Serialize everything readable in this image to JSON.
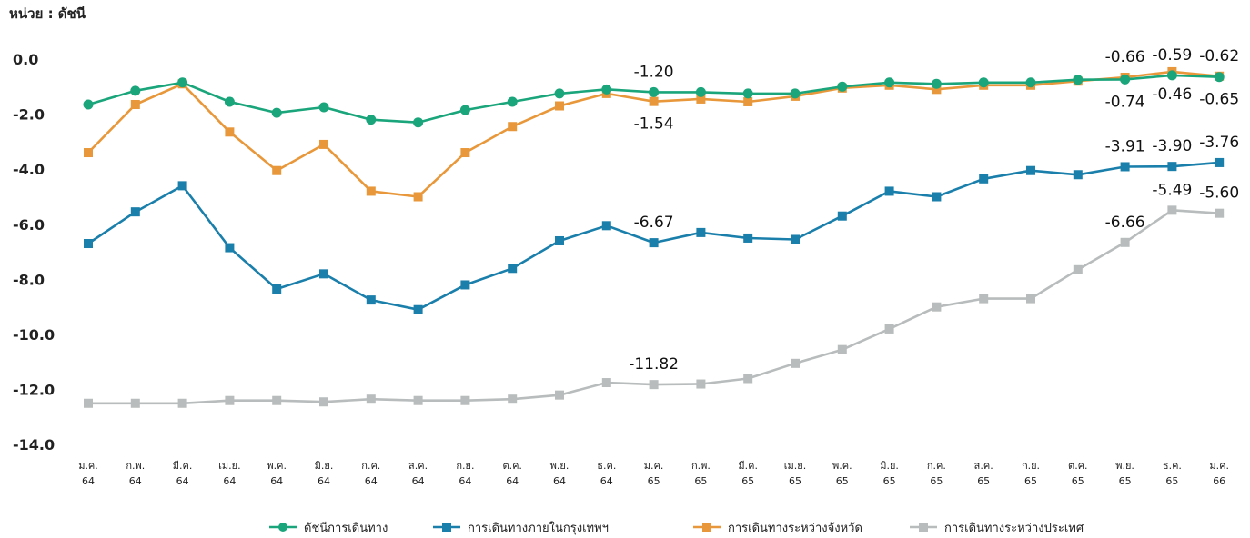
{
  "chart_data": {
    "type": "line",
    "unit_label": "หน่วย : ดัชนี",
    "categories": [
      [
        "ม.ค.",
        "64"
      ],
      [
        "ก.พ.",
        "64"
      ],
      [
        "มี.ค.",
        "64"
      ],
      [
        "เม.ย.",
        "64"
      ],
      [
        "พ.ค.",
        "64"
      ],
      [
        "มิ.ย.",
        "64"
      ],
      [
        "ก.ค.",
        "64"
      ],
      [
        "ส.ค.",
        "64"
      ],
      [
        "ก.ย.",
        "64"
      ],
      [
        "ต.ค.",
        "64"
      ],
      [
        "พ.ย.",
        "64"
      ],
      [
        "ธ.ค.",
        "64"
      ],
      [
        "ม.ค.",
        "65"
      ],
      [
        "ก.พ.",
        "65"
      ],
      [
        "มี.ค.",
        "65"
      ],
      [
        "เม.ย.",
        "65"
      ],
      [
        "พ.ค.",
        "65"
      ],
      [
        "มิ.ย.",
        "65"
      ],
      [
        "ก.ค.",
        "65"
      ],
      [
        "ส.ค.",
        "65"
      ],
      [
        "ก.ย.",
        "65"
      ],
      [
        "ต.ค.",
        "65"
      ],
      [
        "พ.ย.",
        "65"
      ],
      [
        "ธ.ค.",
        "65"
      ],
      [
        "ม.ค.",
        "66"
      ]
    ],
    "ylim": [
      -14,
      0
    ],
    "yticks": [
      "0.0",
      "-2.0",
      "-4.0",
      "-6.0",
      "-8.0",
      "-10.0",
      "-12.0",
      "-14.0"
    ],
    "grid": false,
    "legend_position": "bottom",
    "series": [
      {
        "name": "ดัชนีการเดินทาง",
        "color": "#1aa57a",
        "marker": "circle",
        "values": [
          -1.65,
          -1.15,
          -0.85,
          -1.55,
          -1.95,
          -1.75,
          -2.2,
          -2.3,
          -1.85,
          -1.55,
          -1.25,
          -1.1,
          -1.2,
          -1.2,
          -1.25,
          -1.25,
          -1.0,
          -0.85,
          -0.9,
          -0.85,
          -0.85,
          -0.75,
          -0.74,
          -0.59,
          -0.65
        ]
      },
      {
        "name": "การเดินทางภายในกรุงเทพฯ",
        "color": "#1a7fab",
        "marker": "square",
        "values": [
          -6.7,
          -5.55,
          -4.6,
          -6.85,
          -8.35,
          -7.8,
          -8.75,
          -9.1,
          -8.2,
          -7.6,
          -6.6,
          -6.05,
          -6.67,
          -6.3,
          -6.5,
          -6.55,
          -5.7,
          -4.8,
          -5.0,
          -4.35,
          -4.05,
          -4.2,
          -3.91,
          -3.9,
          -3.76
        ]
      },
      {
        "name": "การเดินทางระหว่างจังหวัด",
        "color": "#e8983a",
        "marker": "square",
        "values": [
          -3.4,
          -1.65,
          -0.9,
          -2.65,
          -4.05,
          -3.1,
          -4.8,
          -5.0,
          -3.4,
          -2.45,
          -1.7,
          -1.25,
          -1.54,
          -1.45,
          -1.55,
          -1.35,
          -1.05,
          -0.95,
          -1.1,
          -0.95,
          -0.95,
          -0.8,
          -0.66,
          -0.46,
          -0.62
        ]
      },
      {
        "name": "การเดินทางระหว่างประเทศ",
        "color": "#b8bcbc",
        "marker": "square",
        "values": [
          -12.5,
          -12.5,
          -12.5,
          -12.4,
          -12.4,
          -12.45,
          -12.35,
          -12.4,
          -12.4,
          -12.35,
          -12.2,
          -11.75,
          -11.82,
          -11.8,
          -11.6,
          -11.05,
          -10.55,
          -9.8,
          -9.0,
          -8.7,
          -8.7,
          -7.65,
          -6.66,
          -5.49,
          -5.6
        ]
      }
    ],
    "data_labels": [
      {
        "text": "-1.20",
        "category_index": 12,
        "series_index": 0,
        "side": "above"
      },
      {
        "text": "-1.54",
        "category_index": 12,
        "series_index": 2,
        "side": "below"
      },
      {
        "text": "-6.67",
        "category_index": 12,
        "series_index": 1,
        "side": "above"
      },
      {
        "text": "-11.82",
        "category_index": 12,
        "series_index": 3,
        "side": "above"
      },
      {
        "text": "-0.66",
        "category_index": 22,
        "series_index": 2,
        "side": "above"
      },
      {
        "text": "-0.59",
        "category_index": 23,
        "series_index": 0,
        "side": "above"
      },
      {
        "text": "-0.62",
        "category_index": 24,
        "series_index": 2,
        "side": "above"
      },
      {
        "text": "-0.74",
        "category_index": 22,
        "series_index": 0,
        "side": "below"
      },
      {
        "text": "-0.46",
        "category_index": 23,
        "series_index": 2,
        "side": "below"
      },
      {
        "text": "-0.65",
        "category_index": 24,
        "series_index": 0,
        "side": "below"
      },
      {
        "text": "-3.91",
        "category_index": 22,
        "series_index": 1,
        "side": "above"
      },
      {
        "text": "-3.90",
        "category_index": 23,
        "series_index": 1,
        "side": "above"
      },
      {
        "text": "-3.76",
        "category_index": 24,
        "series_index": 1,
        "side": "above"
      },
      {
        "text": "-6.66",
        "category_index": 22,
        "series_index": 3,
        "side": "above"
      },
      {
        "text": "-5.49",
        "category_index": 23,
        "series_index": 3,
        "side": "above"
      },
      {
        "text": "-5.60",
        "category_index": 24,
        "series_index": 3,
        "side": "above"
      }
    ]
  }
}
